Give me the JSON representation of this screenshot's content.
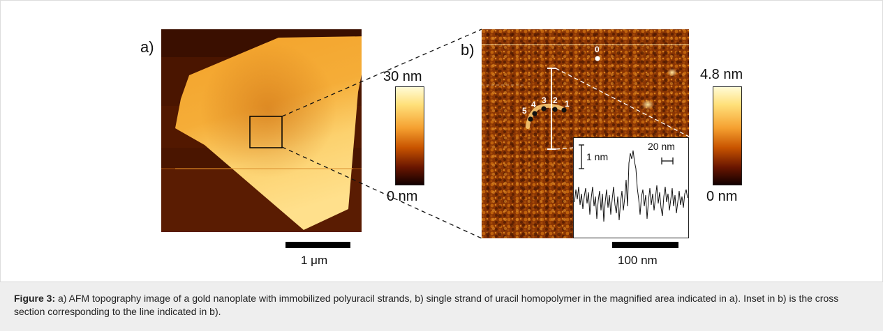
{
  "figure": {
    "panel_a": {
      "label": "a)",
      "colorbar": {
        "max_label": "30 nm",
        "min_label": "0 nm"
      },
      "scalebar_label": "1 μm"
    },
    "panel_b": {
      "label": "b)",
      "colorbar": {
        "max_label": "4.8 nm",
        "min_label": "0 nm"
      },
      "scalebar_label": "100 nm",
      "point_labels": [
        "0",
        "1",
        "2",
        "3",
        "4",
        "5"
      ],
      "inset": {
        "vertical_scale_label": "1 nm",
        "horizontal_scale_label": "20 nm"
      }
    },
    "caption": {
      "prefix": "Figure 3:",
      "text": " a) AFM topography image of a gold nanoplate with immobilized polyuracil strands, b) single strand of uracil homopolymer in the magnified area indicated in a). Inset in b) is the cross section corresponding to the line indicated in b)."
    }
  },
  "colors": {
    "afm_dark": "#2a0800",
    "afm_mid": "#c85a00",
    "afm_bright": "#ffe08a",
    "caption_bg": "#eeeeee"
  }
}
